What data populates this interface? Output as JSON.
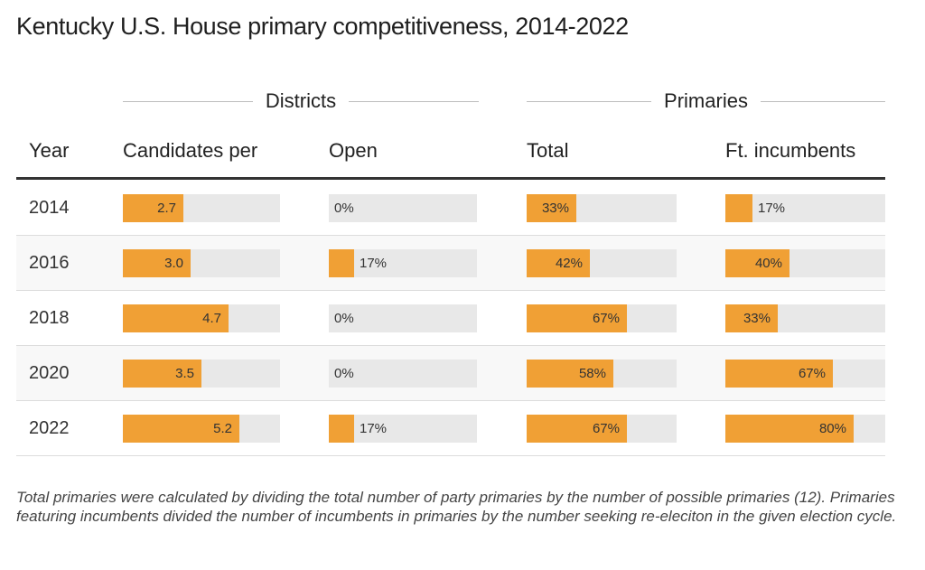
{
  "title": "Kentucky U.S. House primary competitiveness, 2014-2022",
  "groups": {
    "districts": "Districts",
    "primaries": "Primaries"
  },
  "columns": {
    "year": "Year",
    "candidates": "Candidates per",
    "open": "Open",
    "total": "Total",
    "incumbents": "Ft. incumbents"
  },
  "note": "Total primaries were calculated by dividing the total number of party primaries by the number of possible primaries (12). Primaries featuring incumbents divided the number of incumbents in primaries by the number seeking re-eleciton in the given election cycle.",
  "colors": {
    "bar": "#f0a035",
    "track": "#e8e8e8"
  },
  "chart_data": {
    "type": "table",
    "title": "Kentucky U.S. House primary competitiveness, 2014-2022",
    "column_groups": [
      {
        "name": "Districts",
        "columns": [
          "Candidates per",
          "Open"
        ]
      },
      {
        "name": "Primaries",
        "columns": [
          "Total",
          "Ft. incumbents"
        ]
      }
    ],
    "columns": [
      "Year",
      "Candidates per",
      "Open",
      "Total",
      "Ft. incumbents"
    ],
    "scales": {
      "candidates": [
        0,
        7
      ],
      "open": [
        0,
        100
      ],
      "total": [
        0,
        100
      ],
      "incumbents": [
        0,
        100
      ]
    },
    "rows": [
      {
        "year": "2014",
        "candidates": 2.7,
        "candidates_label": "2.7",
        "open": 0,
        "open_label": "0%",
        "total": 33,
        "total_label": "33%",
        "incumbents": 17,
        "incumbents_label": "17%"
      },
      {
        "year": "2016",
        "candidates": 3.0,
        "candidates_label": "3.0",
        "open": 17,
        "open_label": "17%",
        "total": 42,
        "total_label": "42%",
        "incumbents": 40,
        "incumbents_label": "40%"
      },
      {
        "year": "2018",
        "candidates": 4.7,
        "candidates_label": "4.7",
        "open": 0,
        "open_label": "0%",
        "total": 67,
        "total_label": "67%",
        "incumbents": 33,
        "incumbents_label": "33%"
      },
      {
        "year": "2020",
        "candidates": 3.5,
        "candidates_label": "3.5",
        "open": 0,
        "open_label": "0%",
        "total": 58,
        "total_label": "58%",
        "incumbents": 67,
        "incumbents_label": "67%"
      },
      {
        "year": "2022",
        "candidates": 5.2,
        "candidates_label": "5.2",
        "open": 17,
        "open_label": "17%",
        "total": 67,
        "total_label": "67%",
        "incumbents": 80,
        "incumbents_label": "80%"
      }
    ]
  }
}
